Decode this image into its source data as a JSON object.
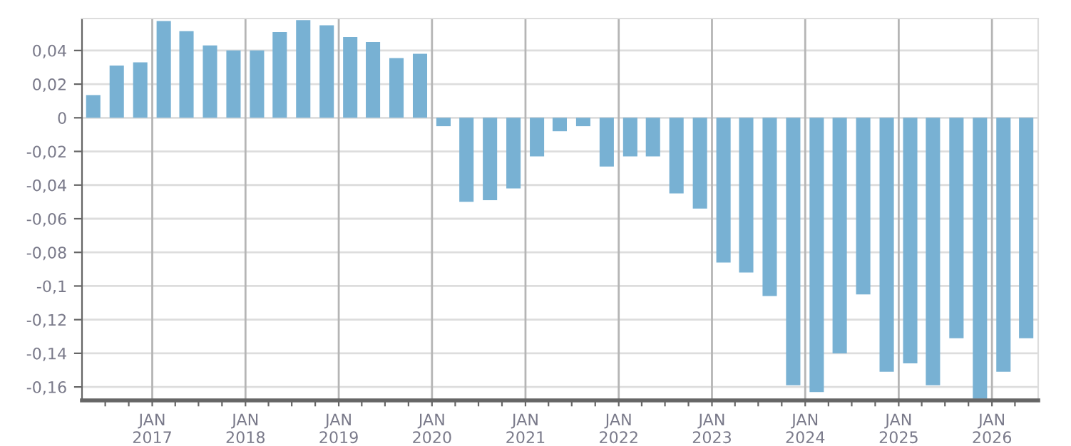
{
  "chart_data": {
    "type": "bar",
    "x": [
      "2016-05-15",
      "2016-08-15",
      "2016-11-15",
      "2017-02-15",
      "2017-05-15",
      "2017-08-15",
      "2017-11-15",
      "2018-02-15",
      "2018-05-15",
      "2018-08-15",
      "2018-11-15",
      "2019-02-15",
      "2019-05-15",
      "2019-08-15",
      "2019-11-15",
      "2020-02-15",
      "2020-05-15",
      "2020-08-15",
      "2020-11-15",
      "2021-02-15",
      "2021-05-15",
      "2021-08-15",
      "2021-11-15",
      "2022-02-15",
      "2022-05-15",
      "2022-08-15",
      "2022-11-15",
      "2023-02-15",
      "2023-05-15",
      "2023-08-15",
      "2023-11-15",
      "2024-02-15",
      "2024-05-15",
      "2024-08-15",
      "2024-11-15",
      "2025-02-15",
      "2025-05-15",
      "2025-08-15",
      "2025-11-15",
      "2026-02-15",
      "2026-05-15"
    ],
    "values": [
      0.0135,
      0.031,
      0.033,
      0.0575,
      0.0515,
      0.043,
      0.04,
      0.04,
      0.051,
      0.058,
      0.055,
      0.048,
      0.045,
      0.0355,
      0.038,
      -0.005,
      -0.05,
      -0.049,
      -0.042,
      -0.023,
      -0.008,
      -0.005,
      -0.029,
      -0.023,
      -0.023,
      -0.045,
      -0.054,
      -0.086,
      -0.092,
      -0.106,
      -0.159,
      -0.163,
      -0.14,
      -0.105,
      -0.151,
      -0.146,
      -0.159,
      -0.131,
      -0.167,
      -0.151,
      -0.131
    ],
    "color": "#78b1d3",
    "xlim": [
      "2016-04-01",
      "2026-07-01"
    ],
    "xticks": [
      {
        "value": "2016-07-01",
        "label": null
      },
      {
        "value": "2016-10-01",
        "label": null
      },
      {
        "value": "2017-01-01",
        "label": "JAN\n2017"
      },
      {
        "value": "2017-04-01",
        "label": null
      },
      {
        "value": "2017-07-01",
        "label": null
      },
      {
        "value": "2017-10-01",
        "label": null
      },
      {
        "value": "2018-01-01",
        "label": "JAN\n2018"
      },
      {
        "value": "2018-04-01",
        "label": null
      },
      {
        "value": "2018-07-01",
        "label": null
      },
      {
        "value": "2018-10-01",
        "label": null
      },
      {
        "value": "2019-01-01",
        "label": "JAN\n2019"
      },
      {
        "value": "2019-04-01",
        "label": null
      },
      {
        "value": "2019-07-01",
        "label": null
      },
      {
        "value": "2019-10-01",
        "label": null
      },
      {
        "value": "2020-01-01",
        "label": "JAN\n2020"
      },
      {
        "value": "2020-04-01",
        "label": null
      },
      {
        "value": "2020-07-01",
        "label": null
      },
      {
        "value": "2020-10-01",
        "label": null
      },
      {
        "value": "2021-01-01",
        "label": "JAN\n2021"
      },
      {
        "value": "2021-04-01",
        "label": null
      },
      {
        "value": "2021-07-01",
        "label": null
      },
      {
        "value": "2021-10-01",
        "label": null
      },
      {
        "value": "2022-01-01",
        "label": "JAN\n2022"
      },
      {
        "value": "2022-04-01",
        "label": null
      },
      {
        "value": "2022-07-01",
        "label": null
      },
      {
        "value": "2022-10-01",
        "label": null
      },
      {
        "value": "2023-01-01",
        "label": "JAN\n2023"
      },
      {
        "value": "2023-04-01",
        "label": null
      },
      {
        "value": "2023-07-01",
        "label": null
      },
      {
        "value": "2023-10-01",
        "label": null
      },
      {
        "value": "2024-01-01",
        "label": "JAN\n2024"
      },
      {
        "value": "2024-04-01",
        "label": null
      },
      {
        "value": "2024-07-01",
        "label": null
      },
      {
        "value": "2024-10-01",
        "label": null
      },
      {
        "value": "2025-01-01",
        "label": "JAN\n2025"
      },
      {
        "value": "2025-04-01",
        "label": null
      },
      {
        "value": "2025-07-01",
        "label": null
      },
      {
        "value": "2025-10-01",
        "label": null
      },
      {
        "value": "2026-01-01",
        "label": "JAN\n2026"
      },
      {
        "value": "2026-04-01",
        "label": null
      }
    ],
    "ylim": [
      -0.168,
      0.059
    ],
    "yticks": [
      {
        "value": 0.04,
        "label": "0,04"
      },
      {
        "value": 0.02,
        "label": "0,02"
      },
      0,
      {
        "value": -0.02,
        "label": "-0,02"
      },
      {
        "value": -0.04,
        "label": "-0,04"
      },
      {
        "value": -0.06,
        "label": "-0,06"
      },
      {
        "value": -0.08,
        "label": "-0,08"
      },
      {
        "value": -0.1,
        "label": "-0,1"
      },
      {
        "value": -0.12,
        "label": "-0,12"
      },
      {
        "value": -0.14,
        "label": "-0,14"
      },
      {
        "value": -0.16,
        "label": "-0,16"
      }
    ],
    "grid": true
  }
}
